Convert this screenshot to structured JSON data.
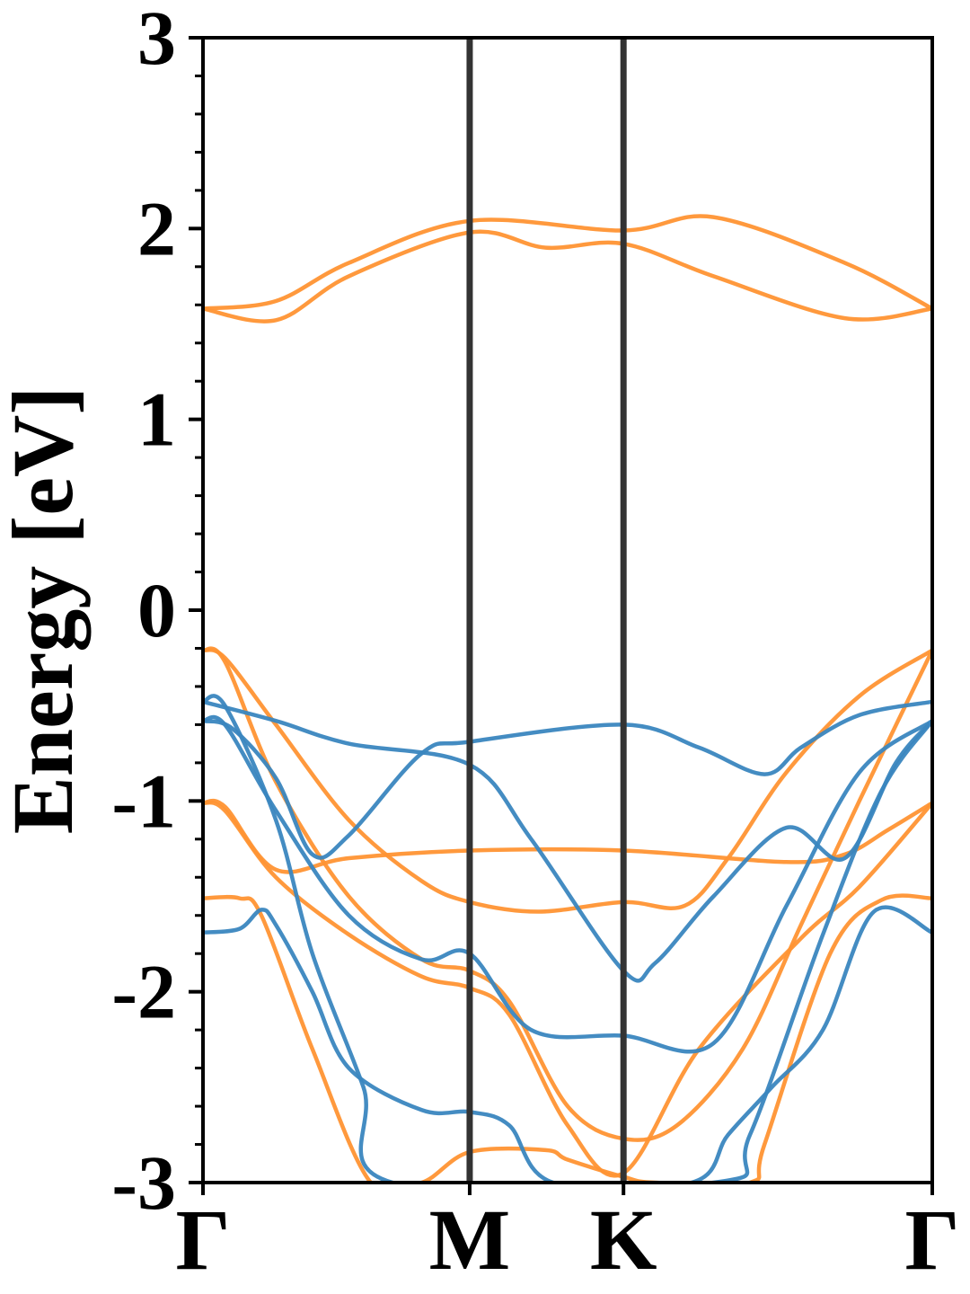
{
  "chart_data": {
    "type": "line",
    "title": "",
    "xlabel": "",
    "ylabel": "Energy [eV]",
    "ylim": [
      -3,
      3
    ],
    "x_ticks": [
      {
        "label": "Γ",
        "k": 0.0
      },
      {
        "label": "M",
        "k": 0.3657
      },
      {
        "label": "K",
        "k": 0.5766
      },
      {
        "label": "Γ",
        "k": 1.0
      }
    ],
    "y_ticks": [
      -3,
      -2,
      -1,
      0,
      1,
      2,
      3
    ],
    "y_tick_labels": [
      "-3",
      "-2",
      "-1",
      "0",
      "1",
      "2",
      "3"
    ],
    "y_minor_step": 0.2,
    "vertical_lines_at": [
      0.3657,
      0.5766
    ],
    "grid": false,
    "legend": "none",
    "series_colors": {
      "blue": "#3a86bf",
      "orange": "#ff9433"
    },
    "bands": [
      {
        "color": "orange",
        "points": [
          [
            0.0,
            1.58
          ],
          [
            0.1,
            1.52
          ],
          [
            0.2,
            1.75
          ],
          [
            0.3657,
            1.98
          ],
          [
            0.47,
            1.9
          ],
          [
            0.5766,
            1.92
          ],
          [
            0.7,
            1.75
          ],
          [
            0.88,
            1.53
          ],
          [
            1.0,
            1.58
          ]
        ]
      },
      {
        "color": "orange",
        "points": [
          [
            0.0,
            1.58
          ],
          [
            0.1,
            1.62
          ],
          [
            0.2,
            1.82
          ],
          [
            0.3657,
            2.04
          ],
          [
            0.5766,
            1.99
          ],
          [
            0.7,
            2.06
          ],
          [
            0.88,
            1.82
          ],
          [
            1.0,
            1.58
          ]
        ]
      },
      {
        "color": "orange",
        "points": [
          [
            0.0,
            -0.21
          ],
          [
            0.03,
            -0.25
          ],
          [
            0.1,
            -0.6
          ],
          [
            0.2,
            -1.1
          ],
          [
            0.3,
            -1.42
          ],
          [
            0.3657,
            -1.53
          ],
          [
            0.46,
            -1.58
          ],
          [
            0.5766,
            -1.53
          ],
          [
            0.66,
            -1.55
          ],
          [
            0.72,
            -1.3
          ],
          [
            0.8,
            -0.85
          ],
          [
            0.9,
            -0.45
          ],
          [
            1.0,
            -0.21
          ]
        ]
      },
      {
        "color": "orange",
        "points": [
          [
            0.0,
            -0.21
          ],
          [
            0.03,
            -0.27
          ],
          [
            0.1,
            -0.9
          ],
          [
            0.2,
            -1.5
          ],
          [
            0.3,
            -1.83
          ],
          [
            0.3657,
            -1.89
          ],
          [
            0.42,
            -2.05
          ],
          [
            0.5,
            -2.6
          ],
          [
            0.5766,
            -2.77
          ],
          [
            0.65,
            -2.7
          ],
          [
            0.74,
            -2.3
          ],
          [
            0.82,
            -1.65
          ],
          [
            0.9,
            -1.0
          ],
          [
            1.0,
            -0.21
          ]
        ]
      },
      {
        "color": "orange",
        "points": [
          [
            0.0,
            -1.01
          ],
          [
            0.03,
            -1.03
          ],
          [
            0.1,
            -1.36
          ],
          [
            0.2,
            -1.3
          ],
          [
            0.3657,
            -1.26
          ],
          [
            0.5766,
            -1.26
          ],
          [
            0.8,
            -1.32
          ],
          [
            0.88,
            -1.28
          ],
          [
            0.94,
            -1.15
          ],
          [
            1.0,
            -1.01
          ]
        ]
      },
      {
        "color": "orange",
        "points": [
          [
            0.0,
            -1.01
          ],
          [
            0.03,
            -1.05
          ],
          [
            0.1,
            -1.4
          ],
          [
            0.2,
            -1.7
          ],
          [
            0.3,
            -1.92
          ],
          [
            0.3657,
            -1.98
          ],
          [
            0.42,
            -2.12
          ],
          [
            0.5,
            -2.7
          ],
          [
            0.5766,
            -2.95
          ],
          [
            0.68,
            -2.3
          ],
          [
            0.82,
            -1.72
          ],
          [
            0.9,
            -1.45
          ],
          [
            1.0,
            -1.01
          ]
        ]
      },
      {
        "color": "orange",
        "points": [
          [
            0.0,
            -1.51
          ],
          [
            0.05,
            -1.51
          ],
          [
            0.08,
            -1.6
          ],
          [
            0.15,
            -2.3
          ],
          [
            0.23,
            -3.0
          ],
          [
            0.3,
            -3.0
          ],
          [
            0.3657,
            -2.84
          ],
          [
            0.47,
            -2.83
          ],
          [
            0.5,
            -2.88
          ],
          [
            0.5766,
            -2.97
          ],
          [
            0.62,
            -3.0
          ],
          [
            0.75,
            -3.0
          ],
          [
            0.77,
            -2.8
          ],
          [
            0.86,
            -1.8
          ],
          [
            0.93,
            -1.52
          ],
          [
            1.0,
            -1.51
          ]
        ]
      },
      {
        "color": "blue",
        "points": [
          [
            0.0,
            -0.48
          ],
          [
            0.1,
            -0.58
          ],
          [
            0.2,
            -0.7
          ],
          [
            0.3657,
            -0.81
          ],
          [
            0.45,
            -1.2
          ],
          [
            0.5766,
            -1.89
          ],
          [
            0.62,
            -1.85
          ],
          [
            0.7,
            -1.5
          ],
          [
            0.8,
            -1.14
          ],
          [
            0.88,
            -1.3
          ],
          [
            0.95,
            -0.8
          ],
          [
            1.0,
            -0.58
          ]
        ]
      },
      {
        "color": "blue",
        "points": [
          [
            0.0,
            -0.58
          ],
          [
            0.04,
            -0.62
          ],
          [
            0.1,
            -0.88
          ],
          [
            0.15,
            -1.28
          ],
          [
            0.2,
            -1.18
          ],
          [
            0.3,
            -0.75
          ],
          [
            0.3657,
            -0.69
          ],
          [
            0.5766,
            -0.6
          ],
          [
            0.68,
            -0.72
          ],
          [
            0.77,
            -0.86
          ],
          [
            0.82,
            -0.72
          ],
          [
            0.9,
            -0.55
          ],
          [
            1.0,
            -0.48
          ]
        ]
      },
      {
        "color": "blue",
        "points": [
          [
            0.0,
            -0.58
          ],
          [
            0.03,
            -0.6
          ],
          [
            0.1,
            -1.05
          ],
          [
            0.2,
            -1.6
          ],
          [
            0.3,
            -1.83
          ],
          [
            0.3657,
            -1.8
          ],
          [
            0.45,
            -2.2
          ],
          [
            0.5766,
            -2.23
          ],
          [
            0.7,
            -2.27
          ],
          [
            0.8,
            -1.55
          ],
          [
            0.9,
            -0.85
          ],
          [
            1.0,
            -0.58
          ]
        ]
      },
      {
        "color": "blue",
        "points": [
          [
            0.0,
            -1.69
          ],
          [
            0.05,
            -1.67
          ],
          [
            0.08,
            -1.57
          ],
          [
            0.1,
            -1.65
          ],
          [
            0.15,
            -2.0
          ],
          [
            0.2,
            -2.4
          ],
          [
            0.3,
            -2.62
          ],
          [
            0.3657,
            -2.63
          ],
          [
            0.42,
            -2.7
          ],
          [
            0.48,
            -3.0
          ],
          [
            0.67,
            -3.0
          ],
          [
            0.72,
            -2.75
          ],
          [
            0.78,
            -2.5
          ],
          [
            0.85,
            -2.2
          ],
          [
            0.92,
            -1.58
          ],
          [
            1.0,
            -1.69
          ]
        ]
      },
      {
        "color": "blue",
        "points": [
          [
            0.0,
            -0.48
          ],
          [
            0.03,
            -0.5
          ],
          [
            0.1,
            -1.1
          ],
          [
            0.15,
            -1.8
          ],
          [
            0.22,
            -2.5
          ],
          [
            0.26,
            -3.0
          ],
          [
            0.7,
            -3.0
          ],
          [
            0.75,
            -2.75
          ],
          [
            0.85,
            -1.7
          ],
          [
            0.93,
            -0.95
          ],
          [
            1.0,
            -0.58
          ]
        ]
      }
    ]
  }
}
